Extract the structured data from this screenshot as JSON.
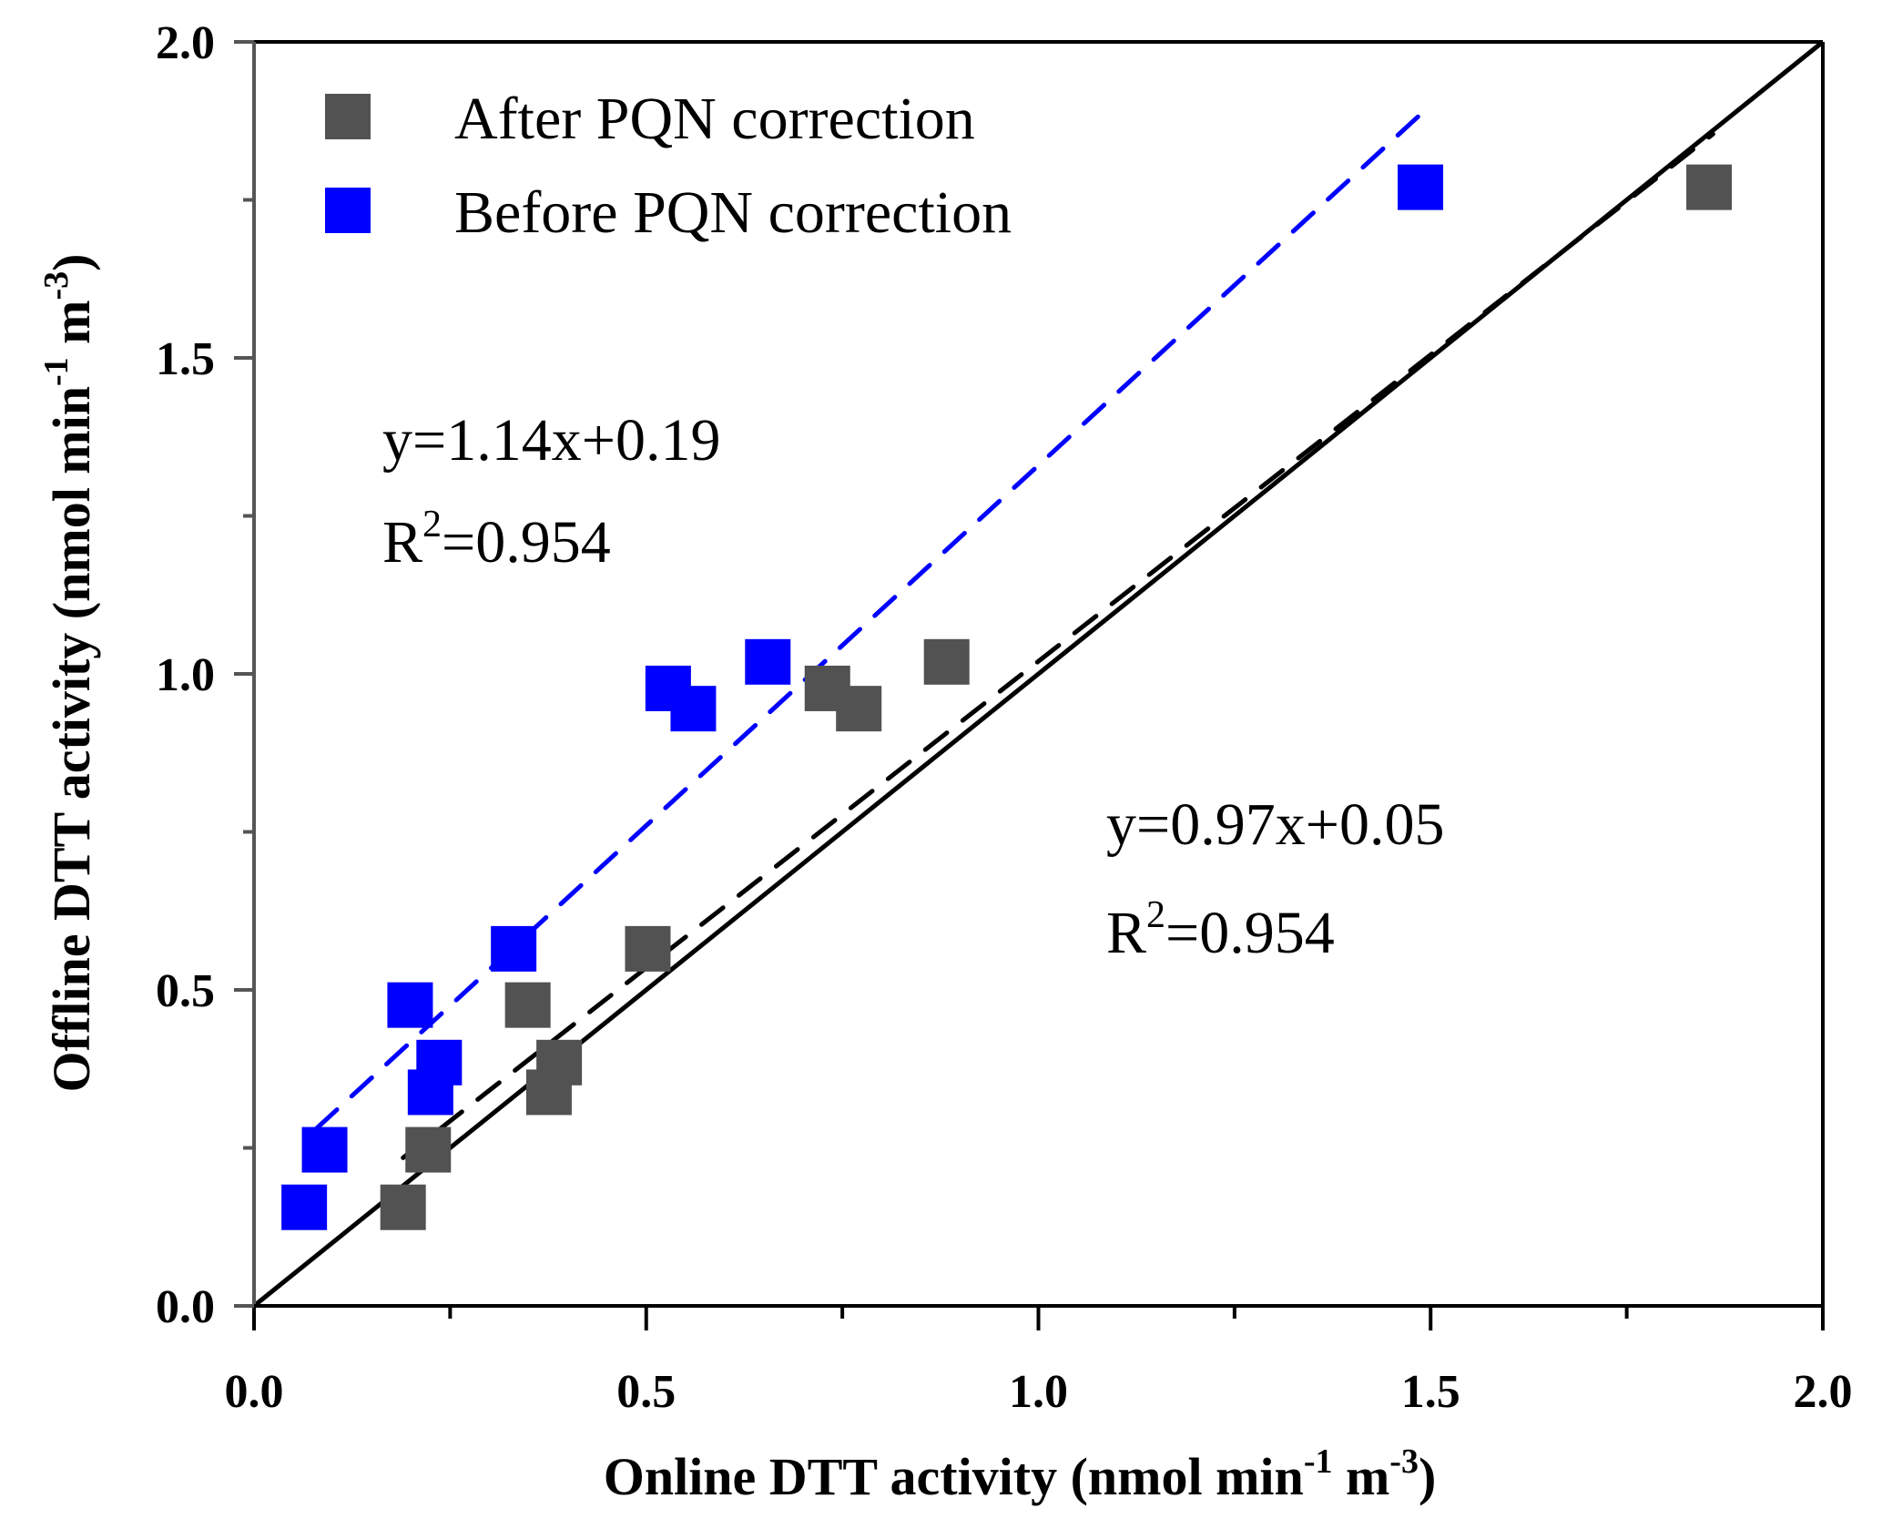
{
  "chart_data": {
    "type": "scatter",
    "xlabel": "Online DTT activity (nmol min-1 m-3)",
    "ylabel": "Offline DTT activity (nmol min-1 m-3)",
    "xlabel_parts": {
      "main": "Online DTT activity (nmol min",
      "sup1": "-1",
      "mid": " m",
      "sup2": "-3",
      "end": ")"
    },
    "ylabel_parts": {
      "main": "Offline DTT activity (nmol min",
      "sup1": "-1",
      "mid": " m",
      "sup2": "-3",
      "end": ")"
    },
    "xlim": [
      0,
      2.0
    ],
    "ylim": [
      0,
      2.0
    ],
    "xticks": [
      "0.0",
      "0.5",
      "1.0",
      "1.5",
      "2.0"
    ],
    "yticks": [
      "0.0",
      "0.5",
      "1.0",
      "1.5",
      "2.0"
    ],
    "grid": false,
    "legend_position": "top-left",
    "series": [
      {
        "name": "After PQN correction",
        "color": "#525252",
        "marker": "square",
        "x": [
          0.19,
          0.222,
          0.349,
          0.376,
          0.389,
          0.502,
          0.731,
          0.771,
          0.883,
          1.855
        ],
        "y": [
          0.156,
          0.247,
          0.476,
          0.338,
          0.385,
          0.565,
          0.977,
          0.945,
          1.019,
          1.77
        ],
        "fit": {
          "equation": "y=0.97x+0.05",
          "r2_label": "R",
          "r2_sup": "2",
          "r2_value": "=0.954",
          "slope": 0.97,
          "intercept": 0.05,
          "x_range": [
            0.19,
            1.86
          ],
          "color": "#000000",
          "style": "dashed"
        }
      },
      {
        "name": "Before PQN correction",
        "color": "#0000ff",
        "marker": "square",
        "x": [
          0.064,
          0.09,
          0.199,
          0.225,
          0.236,
          0.331,
          0.528,
          0.56,
          0.655,
          1.487
        ],
        "y": [
          0.156,
          0.247,
          0.476,
          0.338,
          0.385,
          0.565,
          0.977,
          0.945,
          1.019,
          1.77
        ],
        "fit": {
          "equation": "y=1.14x+0.19",
          "r2_label": "R",
          "r2_sup": "2",
          "r2_value": "=0.954",
          "slope": 1.14,
          "intercept": 0.19,
          "x_range": [
            0.08,
            1.49
          ],
          "color": "#0000ff",
          "style": "dashed"
        }
      }
    ],
    "reference_line": {
      "type": "1:1",
      "color": "#000000",
      "style": "solid"
    }
  }
}
